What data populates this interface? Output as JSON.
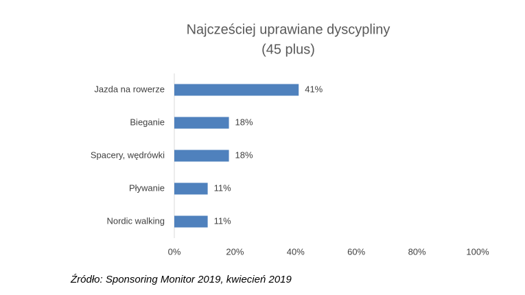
{
  "chart_data": {
    "type": "bar",
    "orientation": "horizontal",
    "title": "Najcześciej uprawiane dyscypliny",
    "subtitle": "(45 plus)",
    "categories": [
      "Jazda na rowerze",
      "Bieganie",
      "Spacery, wędrówki",
      "Pływanie",
      "Nordic walking"
    ],
    "values": [
      41,
      18,
      18,
      11,
      11
    ],
    "value_labels": [
      "41%",
      "18%",
      "18%",
      "11%",
      "11%"
    ],
    "color": "#4f81bd",
    "xlim": [
      0,
      100
    ],
    "xticks": [
      {
        "value": 0,
        "label": "0%"
      },
      {
        "value": 20,
        "label": "20%"
      },
      {
        "value": 40,
        "label": "40%"
      },
      {
        "value": 60,
        "label": "60%"
      },
      {
        "value": 80,
        "label": "80%"
      },
      {
        "value": 100,
        "label": "100%"
      }
    ],
    "grid": false,
    "source": "Źródło:  Sponsoring  Monitor 2019,  kwiecień 2019"
  }
}
